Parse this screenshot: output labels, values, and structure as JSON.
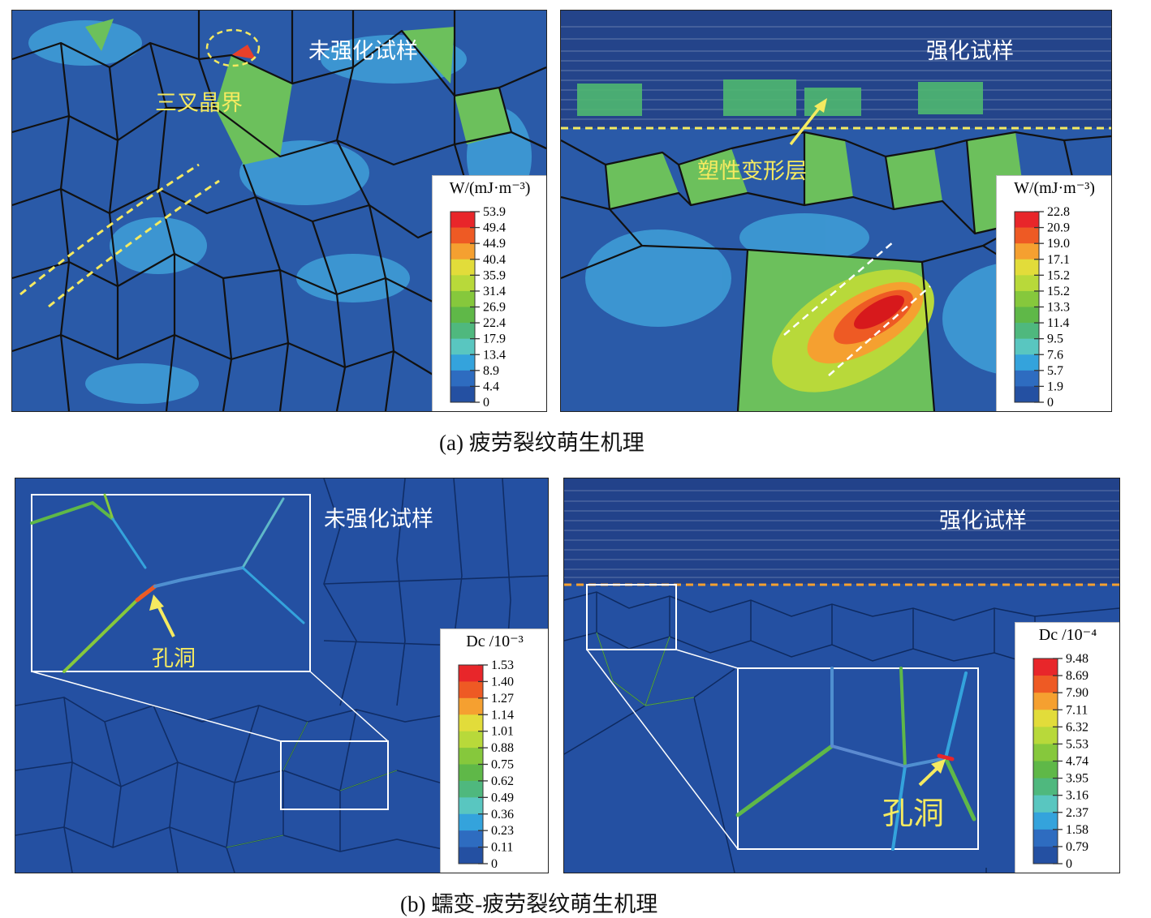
{
  "panels": {
    "a_left": {
      "label": "未强化试样",
      "annotation": "三叉晶界"
    },
    "a_right": {
      "label": "强化试样",
      "annotation": "塑性变形层"
    },
    "b_left": {
      "label": "未强化试样",
      "annotation": "孔洞"
    },
    "b_right": {
      "label": "强化试样",
      "annotation": "孔洞"
    }
  },
  "legends": {
    "a_left": {
      "title": "W/(mJ·m⁻³)",
      "values": [
        "53.9",
        "49.4",
        "44.9",
        "40.4",
        "35.9",
        "31.4",
        "26.9",
        "22.4",
        "17.9",
        "13.4",
        "8.9",
        "4.4",
        "0"
      ]
    },
    "a_right": {
      "title": "W/(mJ·m⁻³)",
      "values": [
        "22.8",
        "20.9",
        "19.0",
        "17.1",
        "15.2",
        "15.2",
        "13.3",
        "11.4",
        "9.5",
        "7.6",
        "5.7",
        "1.9",
        "0"
      ]
    },
    "b_left": {
      "title": "Dc /10⁻³",
      "values": [
        "1.53",
        "1.40",
        "1.27",
        "1.14",
        "1.01",
        "0.88",
        "0.75",
        "0.62",
        "0.49",
        "0.36",
        "0.23",
        "0.11",
        "0"
      ]
    },
    "b_right": {
      "title": "Dc /10⁻⁴",
      "values": [
        "9.48",
        "8.69",
        "7.90",
        "7.11",
        "6.32",
        "5.53",
        "4.74",
        "3.95",
        "3.16",
        "2.37",
        "1.58",
        "0.79",
        "0"
      ]
    }
  },
  "colorscale": [
    "#e8262a",
    "#ee5a24",
    "#f5a030",
    "#e2dc3a",
    "#b8d93a",
    "#86c83c",
    "#5fb848",
    "#4fb87e",
    "#59c6c0",
    "#34a3dc",
    "#2e6cc0",
    "#2450a2"
  ],
  "captions": {
    "a": "(a) 疲劳裂纹萌生机理",
    "b": "(b) 蠕变-疲劳裂纹萌生机理"
  }
}
